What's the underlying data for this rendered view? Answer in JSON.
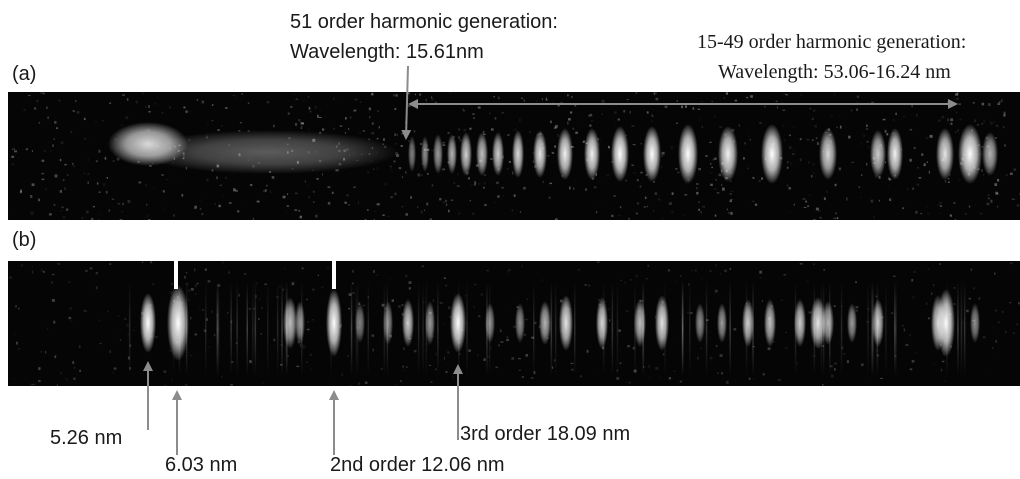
{
  "panels": {
    "a": {
      "label": "(a)",
      "annotation_51": {
        "line1": "51 order harmonic generation:",
        "line2": "Wavelength: 15.61nm"
      },
      "annotation_range": {
        "line1": "15-49 order harmonic generation:",
        "line2": "Wavelength: 53.06-16.24 nm"
      }
    },
    "b": {
      "label": "(b)",
      "markers": {
        "m526": "5.26 nm",
        "m603": "6.03 nm",
        "m2nd": "2nd order 12.06 nm",
        "m3rd": "3rd order 18.09 nm"
      }
    }
  },
  "colors": {
    "strip_bg": "#050505",
    "arrow": "#8c8c8c",
    "text": "#1a1a1a",
    "band": "#ffffff"
  }
}
